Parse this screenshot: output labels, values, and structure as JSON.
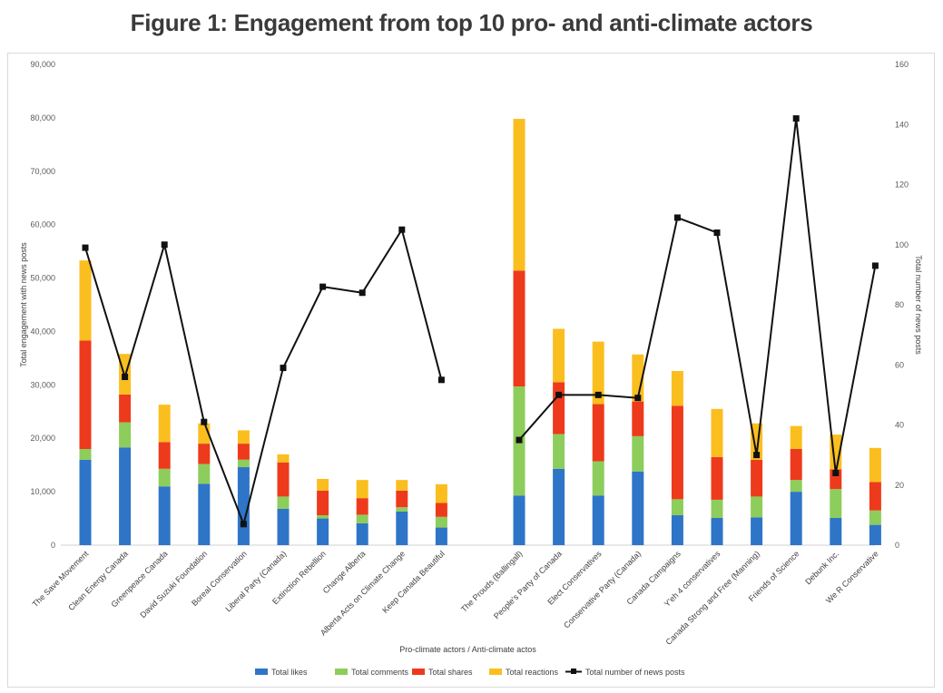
{
  "title": "Figure 1: Engagement from top 10 pro- and anti-climate actors",
  "chart_data": {
    "type": "bar",
    "stacked": true,
    "title": "Figure 1: Engagement from top 10 pro- and anti-climate actors",
    "xlabel": "Pro-climate actors / Anti-climate actos",
    "ylabel": "Total  engagement with news posts",
    "y2label": "Total number of news posts",
    "ylim": [
      0,
      90000
    ],
    "y2lim": [
      0,
      160
    ],
    "yticks": [
      "0",
      "10,000",
      "20,000",
      "30,000",
      "40,000",
      "50,000",
      "60,000",
      "70,000",
      "80,000",
      "90,000"
    ],
    "y2ticks": [
      "0",
      "20",
      "40",
      "60",
      "80",
      "100",
      "120",
      "140",
      "160"
    ],
    "grid": false,
    "legend_position": "bottom",
    "groups": [
      {
        "categories": [
          "The Save Movement",
          "Clean Energy Canada",
          "Greenpeace Canada",
          "David Suzuki Foundation",
          "Boreal Conservation",
          "Liberal Party (Canada)",
          "Extinction Rebellion",
          "Change Alberta",
          "Alberta Acts on Climate Change",
          "Keep Canada Beautiful"
        ]
      },
      {
        "categories": [
          "The Prouds (Ballingall)",
          "People's Party of Canada",
          "Elect Conservatives",
          "Conservative Party (Canada)",
          "Canada Campaigns",
          "Y'eh 4 conservatives",
          "Canada Strong and Free (Manning)",
          "Friends of Science",
          "Debunk Inc.",
          "We R Conservative"
        ]
      }
    ],
    "categories": [
      "The Save Movement",
      "Clean Energy Canada",
      "Greenpeace Canada",
      "David Suzuki Foundation",
      "Boreal Conservation",
      "Liberal Party (Canada)",
      "Extinction Rebellion",
      "Change Alberta",
      "Alberta Acts on Climate Change",
      "Keep Canada Beautiful",
      "The Prouds (Ballingall)",
      "People's Party of Canada",
      "Elect Conservatives",
      "Conservative Party (Canada)",
      "Canada Campaigns",
      "Y'eh 4 conservatives",
      "Canada Strong and Free (Manning)",
      "Friends of Science",
      "Debunk Inc.",
      "We R Conservative"
    ],
    "series": [
      {
        "name": "Total likes",
        "color": "#2e75c8",
        "kind": "bar",
        "values": [
          16000,
          18300,
          11000,
          11500,
          14600,
          6800,
          5000,
          4100,
          6300,
          3300,
          9300,
          14300,
          9300,
          13800,
          5600,
          5100,
          5200,
          10000,
          5100,
          3800
        ]
      },
      {
        "name": "Total comments",
        "color": "#8dcd5b",
        "kind": "bar",
        "values": [
          2000,
          4700,
          3300,
          3700,
          1400,
          2300,
          600,
          1600,
          800,
          2000,
          20400,
          6500,
          6400,
          6600,
          3000,
          3400,
          3900,
          2200,
          5400,
          2700
        ]
      },
      {
        "name": "Total shares",
        "color": "#ee3a1c",
        "kind": "bar",
        "values": [
          20300,
          5200,
          5000,
          3800,
          3000,
          6400,
          4600,
          3100,
          3100,
          2600,
          21700,
          9700,
          10700,
          6500,
          17500,
          8000,
          6900,
          5800,
          3700,
          5300
        ]
      },
      {
        "name": "Total reactions",
        "color": "#fbbe1f",
        "kind": "bar",
        "values": [
          15000,
          7600,
          7000,
          3800,
          2500,
          1500,
          2200,
          3400,
          2000,
          3500,
          28400,
          10000,
          11700,
          8800,
          6500,
          9000,
          6800,
          4300,
          6500,
          6400
        ]
      },
      {
        "name": "Total number of news posts",
        "color": "#111111",
        "kind": "line",
        "axis": "right",
        "values": [
          99,
          56,
          100,
          41,
          7,
          59,
          86,
          84,
          105,
          55,
          35,
          50,
          50,
          49,
          109,
          104,
          30,
          142,
          24,
          93
        ]
      }
    ]
  }
}
